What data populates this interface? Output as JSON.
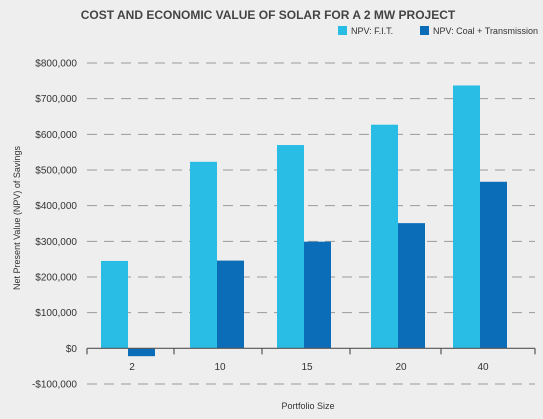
{
  "chart_data": {
    "type": "bar",
    "title": "COST AND ECONOMIC VALUE OF SOLAR FOR A 2 MW PROJECT",
    "xlabel": "Portfolio Size",
    "ylabel": "Net Present Value (NPV) of Savings",
    "categories": [
      "2",
      "10",
      "15",
      "20",
      "40"
    ],
    "series": [
      {
        "name": "NPV: F.I.T.",
        "color": "#29bde6",
        "values": [
          245000,
          523000,
          570000,
          627000,
          737000
        ]
      },
      {
        "name": "NPV: Coal + Transmission",
        "color": "#0b6cb8",
        "values": [
          -22000,
          246000,
          299000,
          351000,
          467000
        ]
      }
    ],
    "ylim": [
      -100000,
      800000
    ],
    "yticks": [
      -100000,
      0,
      100000,
      200000,
      300000,
      400000,
      500000,
      600000,
      700000,
      800000
    ],
    "ytick_labels": [
      "-$100,000",
      "$0",
      "$100,000",
      "$200,000",
      "$300,000",
      "$400,000",
      "$500,000",
      "$600,000",
      "$700,000",
      "$800,000"
    ],
    "grid": "dashed horizontal",
    "legend_position": "top-right"
  }
}
